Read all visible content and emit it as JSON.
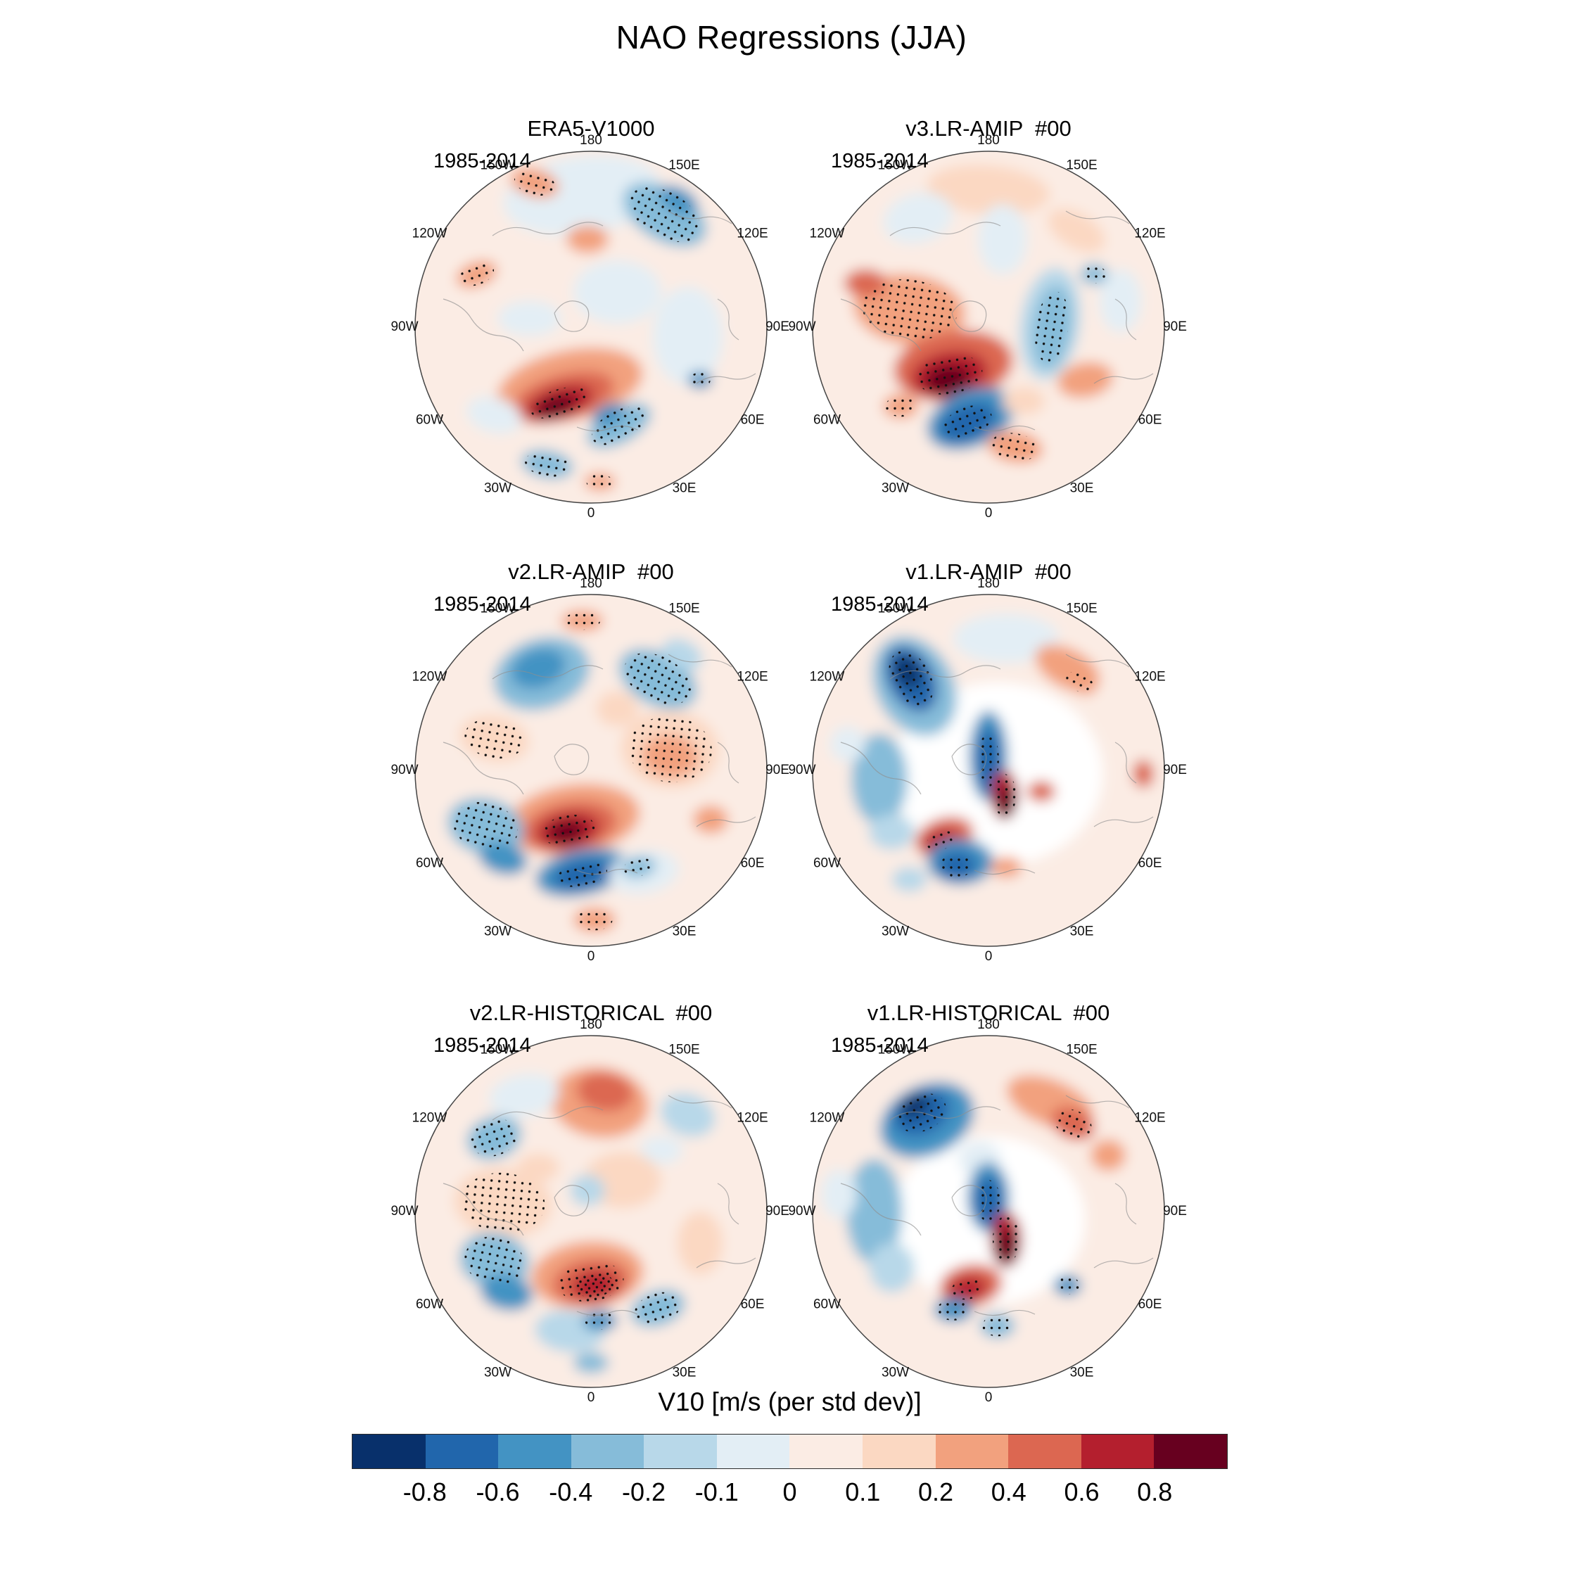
{
  "figure_title": "NAO Regressions (JJA)",
  "lon_labels": [
    "180",
    "150E",
    "120E",
    "90E",
    "60E",
    "30E",
    "0",
    "30W",
    "60W",
    "90W",
    "120W",
    "150W"
  ],
  "colorbar": {
    "label": "V10 [m/s (per std dev)]",
    "tick_labels": [
      "-0.8",
      "-0.6",
      "-0.4",
      "-0.2",
      "-0.1",
      "0",
      "0.1",
      "0.2",
      "0.4",
      "0.6",
      "0.8"
    ],
    "segment_colors": [
      "#08306b",
      "#2166ac",
      "#4393c3",
      "#86bcd9",
      "#b8d8e9",
      "#e3eef5",
      "#fbece4",
      "#fbd8c2",
      "#f2a17e",
      "#dc6751",
      "#b41f2e",
      "#67001f"
    ]
  },
  "panels": [
    {
      "title": "ERA5-V1000",
      "period": "1985-2014",
      "base": 6,
      "blobs": [
        [
          -0.05,
          -0.75,
          0.45,
          0.22,
          -8,
          5,
          0
        ],
        [
          -0.32,
          -0.82,
          0.14,
          0.08,
          15,
          8,
          1
        ],
        [
          0.42,
          -0.64,
          0.26,
          0.15,
          30,
          3,
          1
        ],
        [
          0.5,
          -0.72,
          0.12,
          0.07,
          30,
          2,
          0
        ],
        [
          -0.02,
          -0.5,
          0.12,
          0.08,
          0,
          8,
          0
        ],
        [
          -0.65,
          -0.3,
          0.12,
          0.07,
          -20,
          8,
          1
        ],
        [
          0.15,
          -0.2,
          0.25,
          0.18,
          0,
          5,
          0
        ],
        [
          -0.35,
          -0.05,
          0.18,
          0.1,
          0,
          5,
          0
        ],
        [
          0.55,
          0.05,
          0.2,
          0.28,
          0,
          5,
          0
        ],
        [
          -0.12,
          0.33,
          0.42,
          0.2,
          -12,
          8,
          0
        ],
        [
          -0.16,
          0.4,
          0.3,
          0.13,
          -16,
          9,
          0
        ],
        [
          -0.18,
          0.43,
          0.2,
          0.09,
          -18,
          10,
          1
        ],
        [
          -0.2,
          0.45,
          0.12,
          0.055,
          -18,
          11,
          0
        ],
        [
          0.16,
          0.56,
          0.2,
          0.1,
          -28,
          3,
          1
        ],
        [
          0.1,
          0.5,
          0.1,
          0.06,
          -25,
          2,
          0
        ],
        [
          -0.25,
          0.78,
          0.15,
          0.08,
          10,
          3,
          1
        ],
        [
          0.05,
          0.88,
          0.09,
          0.05,
          0,
          8,
          1
        ],
        [
          0.62,
          0.3,
          0.07,
          0.05,
          0,
          2,
          1
        ],
        [
          -0.55,
          0.5,
          0.16,
          0.1,
          15,
          5,
          0
        ]
      ]
    },
    {
      "title": "v3.LR-AMIP  #00",
      "period": "1985-2014",
      "base": 6,
      "blobs": [
        [
          0.0,
          -0.78,
          0.35,
          0.14,
          5,
          7,
          0
        ],
        [
          -0.4,
          -0.62,
          0.2,
          0.14,
          -15,
          5,
          0
        ],
        [
          0.08,
          -0.5,
          0.14,
          0.2,
          0,
          5,
          0
        ],
        [
          0.5,
          -0.55,
          0.18,
          0.1,
          30,
          7,
          0
        ],
        [
          -0.45,
          -0.1,
          0.32,
          0.2,
          8,
          8,
          1
        ],
        [
          -0.7,
          -0.25,
          0.12,
          0.08,
          0,
          9,
          0
        ],
        [
          0.35,
          -0.02,
          0.17,
          0.32,
          8,
          4,
          0
        ],
        [
          0.36,
          0.0,
          0.11,
          0.24,
          8,
          3,
          1
        ],
        [
          -0.2,
          0.22,
          0.34,
          0.2,
          -8,
          9,
          0
        ],
        [
          -0.22,
          0.27,
          0.22,
          0.13,
          -10,
          10,
          1
        ],
        [
          -0.23,
          0.3,
          0.13,
          0.08,
          -10,
          11,
          0
        ],
        [
          -0.1,
          0.52,
          0.26,
          0.16,
          -22,
          2,
          0
        ],
        [
          -0.12,
          0.54,
          0.17,
          0.1,
          -22,
          1,
          1
        ],
        [
          0.2,
          0.42,
          0.12,
          0.08,
          0,
          7,
          0
        ],
        [
          0.15,
          0.68,
          0.16,
          0.09,
          10,
          8,
          1
        ],
        [
          0.55,
          0.3,
          0.16,
          0.1,
          -10,
          8,
          0
        ],
        [
          0.75,
          -0.15,
          0.12,
          0.18,
          0,
          5,
          0
        ],
        [
          -0.5,
          0.45,
          0.1,
          0.07,
          0,
          8,
          1
        ],
        [
          0.6,
          -0.3,
          0.08,
          0.06,
          0,
          3,
          1
        ]
      ]
    },
    {
      "title": "v2.LR-AMIP  #00",
      "period": "1985-2014",
      "base": 6,
      "blobs": [
        [
          -0.28,
          -0.55,
          0.28,
          0.2,
          -18,
          3,
          0
        ],
        [
          -0.3,
          -0.58,
          0.16,
          0.11,
          -18,
          2,
          0
        ],
        [
          -0.05,
          -0.85,
          0.12,
          0.06,
          0,
          8,
          1
        ],
        [
          0.38,
          -0.52,
          0.24,
          0.15,
          28,
          3,
          1
        ],
        [
          0.52,
          -0.66,
          0.12,
          0.08,
          28,
          4,
          0
        ],
        [
          0.45,
          -0.12,
          0.28,
          0.22,
          5,
          7,
          1
        ],
        [
          0.45,
          -0.08,
          0.16,
          0.12,
          5,
          8,
          0
        ],
        [
          -0.55,
          -0.18,
          0.2,
          0.13,
          10,
          7,
          1
        ],
        [
          0.15,
          -0.35,
          0.12,
          0.1,
          0,
          7,
          0
        ],
        [
          -0.1,
          0.28,
          0.38,
          0.2,
          -8,
          8,
          0
        ],
        [
          -0.12,
          0.32,
          0.27,
          0.14,
          -10,
          9,
          0
        ],
        [
          -0.13,
          0.34,
          0.18,
          0.1,
          -10,
          10,
          1
        ],
        [
          -0.14,
          0.35,
          0.1,
          0.06,
          -10,
          11,
          0
        ],
        [
          -0.05,
          0.58,
          0.27,
          0.13,
          -12,
          2,
          0
        ],
        [
          -0.05,
          0.59,
          0.17,
          0.08,
          -12,
          1,
          1
        ],
        [
          -0.6,
          0.32,
          0.22,
          0.16,
          15,
          3,
          1
        ],
        [
          -0.5,
          0.5,
          0.14,
          0.09,
          15,
          2,
          0
        ],
        [
          0.3,
          0.58,
          0.2,
          0.12,
          -10,
          5,
          0
        ],
        [
          0.27,
          0.55,
          0.1,
          0.06,
          -10,
          3,
          1
        ],
        [
          0.02,
          0.85,
          0.12,
          0.07,
          0,
          8,
          1
        ],
        [
          0.68,
          0.28,
          0.1,
          0.08,
          0,
          8,
          0
        ]
      ]
    },
    {
      "title": "v1.LR-AMIP  #00",
      "period": "1985-2014",
      "base": 6,
      "blobs": [
        [
          0.05,
          0.02,
          0.6,
          0.52,
          0,
          12,
          0
        ],
        [
          -0.42,
          -0.48,
          0.22,
          0.3,
          -28,
          3,
          0
        ],
        [
          -0.44,
          -0.52,
          0.13,
          0.2,
          -28,
          1,
          1
        ],
        [
          -0.46,
          -0.56,
          0.07,
          0.1,
          -28,
          0,
          0
        ],
        [
          0.1,
          -0.75,
          0.3,
          0.14,
          0,
          5,
          0
        ],
        [
          0.45,
          -0.58,
          0.2,
          0.11,
          28,
          8,
          0
        ],
        [
          0.52,
          -0.5,
          0.1,
          0.06,
          28,
          8,
          1
        ],
        [
          0.0,
          -0.08,
          0.11,
          0.26,
          0,
          2,
          0
        ],
        [
          0.0,
          -0.06,
          0.07,
          0.18,
          0,
          1,
          1
        ],
        [
          0.09,
          0.14,
          0.08,
          0.14,
          0,
          10,
          1
        ],
        [
          0.1,
          0.18,
          0.05,
          0.09,
          0,
          11,
          0
        ],
        [
          0.3,
          0.12,
          0.08,
          0.06,
          0,
          9,
          0
        ],
        [
          -0.25,
          0.38,
          0.17,
          0.11,
          -18,
          9,
          0
        ],
        [
          -0.27,
          0.4,
          0.1,
          0.06,
          -18,
          10,
          1
        ],
        [
          -0.16,
          0.52,
          0.19,
          0.13,
          0,
          2,
          0
        ],
        [
          -0.18,
          0.54,
          0.11,
          0.08,
          0,
          1,
          1
        ],
        [
          -0.62,
          0.05,
          0.16,
          0.26,
          0,
          3,
          0
        ],
        [
          -0.55,
          0.35,
          0.13,
          0.1,
          0,
          4,
          0
        ],
        [
          -0.45,
          0.62,
          0.1,
          0.07,
          0,
          4,
          0
        ],
        [
          0.1,
          0.55,
          0.09,
          0.06,
          0,
          8,
          0
        ],
        [
          0.88,
          0.02,
          0.06,
          0.08,
          0,
          9,
          0
        ],
        [
          -0.8,
          -0.15,
          0.1,
          0.1,
          0,
          5,
          0
        ]
      ]
    },
    {
      "title": "v2.LR-HISTORICAL  #00",
      "period": "1985-2014",
      "base": 6,
      "blobs": [
        [
          0.05,
          -0.62,
          0.28,
          0.2,
          8,
          8,
          0
        ],
        [
          0.08,
          -0.68,
          0.16,
          0.11,
          8,
          9,
          0
        ],
        [
          -0.38,
          -0.66,
          0.2,
          0.12,
          -10,
          5,
          0
        ],
        [
          -0.55,
          -0.42,
          0.16,
          0.12,
          -20,
          3,
          1
        ],
        [
          0.55,
          -0.55,
          0.16,
          0.12,
          20,
          4,
          0
        ],
        [
          0.4,
          -0.35,
          0.12,
          0.08,
          0,
          5,
          0
        ],
        [
          -0.5,
          -0.05,
          0.28,
          0.2,
          5,
          7,
          1
        ],
        [
          -0.3,
          -0.25,
          0.12,
          0.08,
          0,
          7,
          0
        ],
        [
          0.18,
          -0.18,
          0.22,
          0.16,
          0,
          7,
          0
        ],
        [
          -0.02,
          -0.12,
          0.1,
          0.09,
          0,
          4,
          0
        ],
        [
          -0.02,
          0.36,
          0.32,
          0.19,
          -6,
          8,
          0
        ],
        [
          0.0,
          0.4,
          0.22,
          0.13,
          -8,
          9,
          1
        ],
        [
          0.02,
          0.42,
          0.13,
          0.08,
          -8,
          10,
          1
        ],
        [
          -0.55,
          0.28,
          0.2,
          0.16,
          12,
          3,
          1
        ],
        [
          -0.48,
          0.46,
          0.15,
          0.1,
          12,
          2,
          0
        ],
        [
          -0.12,
          0.68,
          0.2,
          0.12,
          5,
          4,
          0
        ],
        [
          0.05,
          0.62,
          0.1,
          0.06,
          0,
          2,
          1
        ],
        [
          0.38,
          0.55,
          0.16,
          0.1,
          -18,
          3,
          1
        ],
        [
          0.62,
          0.18,
          0.13,
          0.18,
          0,
          7,
          0
        ],
        [
          0.0,
          0.86,
          0.1,
          0.06,
          0,
          3,
          0
        ]
      ]
    },
    {
      "title": "v1.LR-HISTORICAL  #00",
      "period": "1985-2014",
      "base": 6,
      "blobs": [
        [
          0.0,
          0.05,
          0.55,
          0.48,
          0,
          12,
          0
        ],
        [
          -0.35,
          -0.52,
          0.28,
          0.2,
          -25,
          2,
          0
        ],
        [
          -0.38,
          -0.56,
          0.17,
          0.12,
          -25,
          1,
          1
        ],
        [
          -0.42,
          -0.6,
          0.09,
          0.06,
          -25,
          0,
          0
        ],
        [
          0.35,
          -0.62,
          0.26,
          0.13,
          22,
          8,
          0
        ],
        [
          0.48,
          -0.5,
          0.13,
          0.09,
          22,
          9,
          1
        ],
        [
          0.68,
          -0.32,
          0.1,
          0.09,
          0,
          8,
          0
        ],
        [
          -0.05,
          -0.3,
          0.12,
          0.1,
          0,
          5,
          0
        ],
        [
          0.0,
          -0.08,
          0.12,
          0.2,
          0,
          2,
          0
        ],
        [
          0.0,
          -0.06,
          0.08,
          0.14,
          0,
          1,
          1
        ],
        [
          0.1,
          0.16,
          0.09,
          0.16,
          0,
          10,
          1
        ],
        [
          0.1,
          0.2,
          0.06,
          0.1,
          0,
          11,
          0
        ],
        [
          -0.1,
          0.42,
          0.18,
          0.12,
          -10,
          9,
          0
        ],
        [
          -0.12,
          0.44,
          0.11,
          0.07,
          -10,
          10,
          1
        ],
        [
          -0.2,
          0.56,
          0.11,
          0.07,
          0,
          2,
          1
        ],
        [
          -0.65,
          0.0,
          0.16,
          0.3,
          0,
          3,
          0
        ],
        [
          -0.55,
          0.32,
          0.13,
          0.14,
          0,
          4,
          0
        ],
        [
          0.05,
          0.65,
          0.1,
          0.07,
          0,
          3,
          1
        ],
        [
          0.45,
          0.42,
          0.08,
          0.06,
          0,
          2,
          1
        ],
        [
          -0.85,
          -0.1,
          0.1,
          0.14,
          0,
          5,
          0
        ]
      ]
    }
  ],
  "chart_data": {
    "type": "heatmap",
    "subtype": "north-polar stereographic map grid, 3 rows x 2 columns",
    "figure_title": "NAO Regressions (JJA)",
    "variable": "V10",
    "colorbar_label": "V10 [m/s (per std dev)]",
    "contour_levels": [
      -0.8,
      -0.6,
      -0.4,
      -0.2,
      -0.1,
      0,
      0.1,
      0.2,
      0.4,
      0.6,
      0.8
    ],
    "colormap": "diverging blue-white-red, 12 discrete bins including both extensions",
    "legend_position": "horizontal colorbar at bottom",
    "stippling_meaning": "stippled (dotted) regions mark statistically significant anomalies",
    "longitude_ring_labels": [
      "180",
      "150E",
      "120E",
      "90E",
      "60E",
      "30E",
      "0",
      "30W",
      "60W",
      "90W",
      "120W",
      "150W"
    ],
    "panels": [
      {
        "title": "ERA5-V1000",
        "period": "1985-2014",
        "summary": "strong stippled positive center (>0.8) over the subpolar North Atlantic; stippled negative band over western Europe; stippled negative region over northeast Siberia; weak pale anomalies elsewhere"
      },
      {
        "title": "v3.LR-AMIP  #00",
        "period": "1985-2014",
        "summary": "strong stippled positive center over the subpolar North Atlantic with strong stippled negative center just south of it; broad stippled positive anomalies over northern Canada; negative band over central Siberia"
      },
      {
        "title": "v2.LR-AMIP  #00",
        "period": "1985-2014",
        "summary": "strong stippled positive center over the central North Atlantic; stippled dark negative band to its southeast; broad negatives over the North Pacific sector; stippled weak positives over Siberia"
      },
      {
        "title": "v1.LR-AMIP  #00",
        "period": "1985-2014",
        "summary": "large neutral (white) Arctic interior; strong stippled negative center in the North Pacific sector; narrow negative/positive dipole near Greenland; stippled positive patch over the subpolar Atlantic"
      },
      {
        "title": "v2.LR-HISTORICAL  #00",
        "period": "1985-2014",
        "summary": "stippled positive center over the subpolar North Atlantic; stippled weak positives over northern Canada; stippled negatives over the eastern Pacific and lower-left Atlantic; positive band along the Arctic Siberian coast"
      },
      {
        "title": "v1.LR-HISTORICAL  #00",
        "period": "1985-2014",
        "summary": "large neutral (white) Arctic interior; strong stippled negative center in the North Pacific sector; stippled positive band along the Siberian coast; red/blue dipole near Greenland with stippled positive over the subpolar Atlantic"
      }
    ]
  }
}
